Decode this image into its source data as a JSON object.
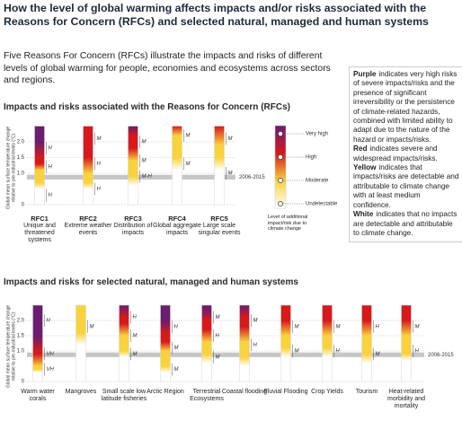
{
  "title": "How the level of global warming affects impacts and/or risks associated with the Reasons for Concern (RFCs) and selected natural, managed and human systems",
  "intro": "Five Reasons For Concern (RFCs) illustrate the impacts and risks of different levels of global warming for people, economies and ecosystems across sectors and regions.",
  "y_label": "Global mean surface temperature change relative to pre-industrial levels (°C)",
  "ylim": [
    0,
    2.5
  ],
  "yticks": [
    0,
    {
      "value": 1,
      "label": "1.0"
    },
    1.5,
    {
      "value": 2,
      "label": "2.0"
    }
  ],
  "observed": {
    "label": "2006-2015",
    "range": [
      0.8,
      0.95
    ]
  },
  "legend": {
    "levels": [
      {
        "name": "Very high",
        "color": "#6b1d6f"
      },
      {
        "name": "High",
        "color": "#d7191c"
      },
      {
        "name": "Moderate",
        "color": "#f9d23c"
      },
      {
        "name": "Undetectable",
        "color": "#ffffff"
      }
    ],
    "caption": "Level of additional impact/risk due to climate change"
  },
  "explanation": [
    {
      "bold": "Purple",
      "text": "indicates very high risks of severe impacts/risks and the presence of significant irreversibility or the persistence of climate-related hazards, combined with limited ability to adapt due to the nature of the hazard or impacts/risks."
    },
    {
      "bold": "Red",
      "text": "indicates severe and widespread impacts/risks."
    },
    {
      "bold": "Yellow",
      "text": "indicates that impacts/risks are detectable and attributable to climate change with at least medium confidence."
    },
    {
      "bold": "White",
      "text": "indicates that no impacts are detectable and attributable to climate change."
    }
  ],
  "panel1": {
    "heading": "Impacts and risks associated with the Reasons for Concern (RFCs)",
    "embers": [
      {
        "code": "RFC1",
        "name": "Unique and threatened systems",
        "moderate": [
          0.5,
          0.7
        ],
        "high": [
          1.1,
          1.3
        ],
        "very_high": [
          1.5,
          2.0
        ],
        "confidence": [
          {
            "value": 1.8,
            "label": "H"
          },
          {
            "value": 1.2,
            "label": "H"
          },
          {
            "value": 0.3,
            "label": "H"
          }
        ]
      },
      {
        "code": "RFC2",
        "name": "Extreme weather events",
        "moderate": [
          0.5,
          0.7
        ],
        "high": [
          1.0,
          1.5
        ],
        "confidence": [
          {
            "value": 2.1,
            "label": "M"
          },
          {
            "value": 1.3,
            "label": "H"
          },
          {
            "value": 0.5,
            "label": "H"
          }
        ]
      },
      {
        "code": "RFC3",
        "name": "Distribution of impacts",
        "moderate": [
          0.6,
          0.9
        ],
        "high": [
          1.4,
          1.8
        ],
        "very_high": [
          2.2,
          2.5
        ],
        "confidence": [
          {
            "value": 2.0,
            "label": "M"
          },
          {
            "value": 1.4,
            "label": "M"
          },
          {
            "value": 0.9,
            "label": "M-H"
          }
        ]
      },
      {
        "code": "RFC4",
        "name": "Global aggregate impacts",
        "moderate": [
          1.1,
          1.5
        ],
        "high": [
          2.2,
          2.5
        ],
        "confidence": [
          {
            "value": 2.2,
            "label": "M"
          },
          {
            "value": 1.3,
            "label": "M"
          }
        ]
      },
      {
        "code": "RFC5",
        "name": "Large scale singular events",
        "moderate": [
          1.1,
          1.5
        ],
        "high": [
          1.9,
          2.5
        ],
        "confidence": [
          {
            "value": 2.1,
            "label": "M"
          },
          {
            "value": 1.0,
            "label": "M"
          }
        ]
      }
    ]
  },
  "panel2": {
    "heading": "Impacts and risks for selected natural, managed and human systems",
    "embers": [
      {
        "name": "Warm water corals",
        "moderate": [
          0.3,
          0.4
        ],
        "high": [
          0.5,
          0.9
        ],
        "very_high": [
          1.0,
          1.5
        ],
        "confidence": [
          {
            "value": 2.0,
            "label": "H"
          },
          {
            "value": 0.9,
            "label": "VH"
          },
          {
            "value": 0.4,
            "label": "VH"
          }
        ]
      },
      {
        "name": "Mangroves",
        "moderate": [
          1.2,
          1.6
        ],
        "confidence": [
          {
            "value": 1.8,
            "label": "M"
          }
        ]
      },
      {
        "name": "Small scale low latitude fisheries",
        "moderate": [
          0.8,
          1.0
        ],
        "high": [
          1.5,
          1.9
        ],
        "very_high": [
          2.1,
          2.5
        ],
        "confidence": [
          {
            "value": 2.1,
            "label": "H"
          },
          {
            "value": 1.5,
            "label": "M"
          },
          {
            "value": 0.9,
            "label": "M"
          }
        ]
      },
      {
        "name": "Arctic Region",
        "moderate": [
          0.3,
          0.5
        ],
        "high": [
          1.0,
          1.3
        ],
        "very_high": [
          1.6,
          2.0
        ],
        "confidence": [
          {
            "value": 1.8,
            "label": "H"
          },
          {
            "value": 1.1,
            "label": "M"
          },
          {
            "value": 0.4,
            "label": "M"
          }
        ]
      },
      {
        "name": "Terrestrial Ecosystems",
        "moderate": [
          0.6,
          0.9
        ],
        "high": [
          1.3,
          1.7
        ],
        "very_high": [
          2.0,
          2.4
        ],
        "confidence": [
          {
            "value": 2.1,
            "label": "M"
          },
          {
            "value": 1.5,
            "label": "H"
          },
          {
            "value": 0.8,
            "label": "M"
          }
        ]
      },
      {
        "name": "Coastal flooding",
        "moderate": [
          0.5,
          0.8
        ],
        "high": [
          1.3,
          1.8
        ],
        "very_high": [
          2.1,
          2.5
        ],
        "confidence": [
          {
            "value": 2.0,
            "label": "M"
          },
          {
            "value": 1.2,
            "label": "H"
          }
        ]
      },
      {
        "name": "Fluvial Flooding",
        "moderate": [
          0.8,
          1.1
        ],
        "high": [
          1.5,
          2.0
        ],
        "confidence": [
          {
            "value": 1.8,
            "label": "M"
          },
          {
            "value": 1.0,
            "label": "M"
          }
        ]
      },
      {
        "name": "Crop Yields",
        "moderate": [
          0.8,
          1.1
        ],
        "high": [
          1.5,
          2.0
        ],
        "confidence": [
          {
            "value": 1.8,
            "label": "M"
          },
          {
            "value": 1.0,
            "label": "H"
          }
        ]
      },
      {
        "name": "Tourism",
        "moderate": [
          0.6,
          0.9
        ],
        "high": [
          1.5,
          2.0
        ],
        "confidence": [
          {
            "value": 1.8,
            "label": "H"
          },
          {
            "value": 0.9,
            "label": "M"
          }
        ]
      },
      {
        "name": "Heat-related morbidity and mortality",
        "moderate": [
          0.7,
          0.9
        ],
        "high": [
          1.5,
          2.0
        ],
        "confidence": [
          {
            "value": 1.8,
            "label": "M"
          },
          {
            "value": 1.0,
            "label": "H"
          }
        ]
      }
    ]
  }
}
